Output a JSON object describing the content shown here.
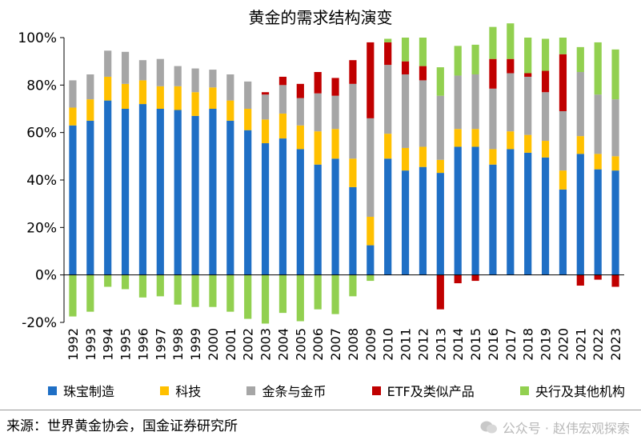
{
  "chart_data": {
    "type": "bar",
    "title": "黄金的需求结构演变",
    "categories": [
      "1992",
      "1993",
      "1994",
      "1995",
      "1996",
      "1997",
      "1998",
      "1999",
      "2000",
      "2001",
      "2002",
      "2003",
      "2004",
      "2005",
      "2006",
      "2007",
      "2008",
      "2009",
      "2010",
      "2011",
      "2012",
      "2013",
      "2014",
      "2015",
      "2016",
      "2017",
      "2018",
      "2019",
      "2020",
      "2021",
      "2022",
      "2023"
    ],
    "yticks": [
      "100%",
      "80%",
      "60%",
      "40%",
      "20%",
      "0%",
      "-20%"
    ],
    "ylim": [
      -20,
      100
    ],
    "grid": false,
    "legend_position": "bottom",
    "series": [
      {
        "name": "珠宝制造",
        "color": "#1f6fc5",
        "values": [
          63,
          65,
          73.5,
          70,
          72,
          70,
          69.5,
          67,
          70,
          65,
          61,
          55.5,
          57.5,
          53,
          46.5,
          49,
          37,
          12.5,
          49,
          44,
          45.5,
          43,
          54,
          54,
          46.5,
          53,
          51.5,
          49.5,
          36,
          51,
          44.5,
          44
        ]
      },
      {
        "name": "科技",
        "color": "#ffc000",
        "values": [
          7.5,
          9,
          10,
          10.5,
          10,
          9.5,
          10,
          10,
          9,
          8.5,
          9,
          10,
          10.5,
          10,
          14,
          12.5,
          12,
          12,
          10.5,
          9.5,
          8.5,
          5.5,
          7.5,
          7.5,
          6.5,
          7.5,
          7.5,
          7,
          8,
          7.5,
          6.5,
          6
        ]
      },
      {
        "name": "金条与金币",
        "color": "#a6a6a6",
        "values": [
          11.5,
          10.5,
          11,
          13.5,
          8.5,
          11.5,
          8.5,
          10,
          7.5,
          11,
          11.5,
          10.5,
          12,
          11.5,
          16,
          14,
          31.5,
          41.5,
          29,
          31,
          28,
          27,
          22.5,
          23,
          25.5,
          24.5,
          24.5,
          20.5,
          25,
          27,
          25,
          24
        ]
      },
      {
        "name": "ETF及类似产品",
        "color": "#c00000",
        "values": [
          0,
          0,
          0,
          0,
          0,
          0,
          0,
          0,
          0,
          0,
          0,
          1,
          3.5,
          6,
          9,
          7.5,
          10,
          32,
          9.5,
          5.5,
          6,
          -14.5,
          -3.5,
          -2.5,
          12.5,
          6,
          1.5,
          9,
          24,
          -4.5,
          -2,
          -5
        ]
      },
      {
        "name": "央行及其他机构",
        "color": "#92d050",
        "values": [
          -17.5,
          -15.5,
          -5,
          -6,
          -9.5,
          -9,
          -12.5,
          -13.5,
          -13.5,
          -15.5,
          -18.5,
          -20.5,
          -16,
          -19.5,
          -14.5,
          -16.5,
          -9,
          -2.5,
          1.5,
          10,
          12,
          12,
          12.5,
          12.5,
          13.5,
          15,
          15,
          13.5,
          7,
          10.5,
          22,
          21
        ]
      }
    ]
  },
  "source_note": "来源：世界黄金协会，国金证券研究所",
  "watermark": "公众号 · 赵伟宏观探索"
}
